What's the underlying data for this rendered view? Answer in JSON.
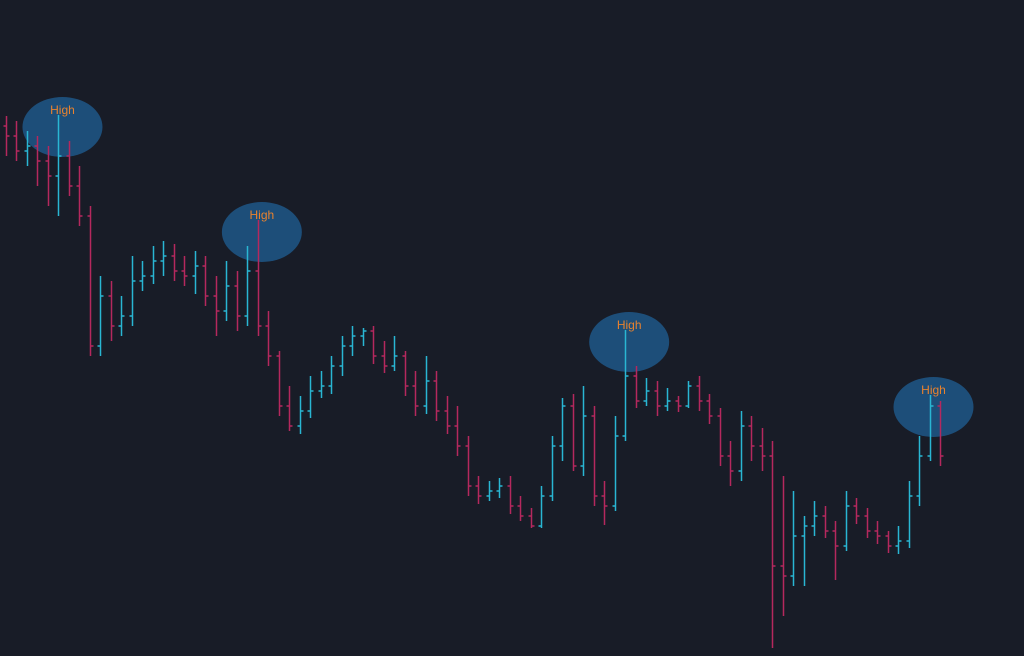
{
  "chart_data": {
    "type": "ohlc",
    "up_color": "#29b6d3",
    "down_color": "#b5285e",
    "note_color": "#1f5f95",
    "ylim": [
      0,
      656
    ],
    "open": [
      530,
      520,
      505,
      510,
      495,
      480,
      500,
      470,
      440,
      310,
      360,
      330,
      340,
      375,
      380,
      395,
      400,
      385,
      380,
      390,
      360,
      345,
      370,
      340,
      385,
      330,
      300,
      250,
      230,
      245,
      265,
      270,
      290,
      310,
      320,
      325,
      300,
      290,
      300,
      270,
      250,
      275,
      245,
      230,
      210,
      170,
      160,
      165,
      170,
      150,
      140,
      130,
      160,
      210,
      250,
      190,
      240,
      160,
      150,
      220,
      280,
      255,
      265,
      250,
      255,
      250,
      270,
      255,
      240,
      200,
      185,
      230,
      210,
      200,
      90,
      80,
      120,
      130,
      140,
      125,
      110,
      150,
      140,
      125,
      120,
      110,
      115,
      160,
      200,
      250
    ],
    "high": [
      540,
      535,
      525,
      520,
      510,
      541,
      515,
      490,
      450,
      380,
      375,
      360,
      400,
      395,
      410,
      415,
      412,
      400,
      405,
      400,
      380,
      395,
      385,
      410,
      436,
      345,
      305,
      270,
      260,
      280,
      285,
      300,
      320,
      330,
      328,
      330,
      315,
      320,
      305,
      285,
      300,
      285,
      260,
      250,
      220,
      180,
      175,
      178,
      180,
      160,
      148,
      170,
      220,
      258,
      262,
      270,
      250,
      175,
      240,
      326,
      290,
      278,
      275,
      268,
      260,
      275,
      280,
      262,
      248,
      215,
      245,
      240,
      228,
      215,
      180,
      165,
      140,
      155,
      150,
      135,
      165,
      158,
      148,
      135,
      125,
      130,
      175,
      220,
      261,
      255
    ],
    "low": [
      500,
      495,
      490,
      470,
      450,
      440,
      460,
      430,
      300,
      300,
      315,
      320,
      330,
      365,
      372,
      380,
      375,
      370,
      362,
      350,
      320,
      335,
      325,
      330,
      320,
      290,
      240,
      225,
      222,
      238,
      258,
      262,
      280,
      300,
      310,
      292,
      283,
      285,
      260,
      240,
      242,
      235,
      222,
      200,
      160,
      152,
      155,
      158,
      142,
      135,
      128,
      128,
      155,
      195,
      185,
      180,
      150,
      131,
      145,
      215,
      248,
      250,
      240,
      245,
      244,
      248,
      245,
      232,
      190,
      170,
      175,
      195,
      185,
      8,
      40,
      70,
      70,
      120,
      118,
      76,
      105,
      132,
      118,
      112,
      103,
      102,
      108,
      150,
      195,
      190
    ],
    "close": [
      520,
      505,
      510,
      495,
      480,
      500,
      470,
      440,
      310,
      360,
      330,
      340,
      375,
      380,
      395,
      400,
      385,
      380,
      390,
      360,
      345,
      370,
      340,
      385,
      330,
      300,
      250,
      230,
      245,
      265,
      270,
      290,
      310,
      320,
      325,
      300,
      290,
      300,
      270,
      250,
      275,
      245,
      230,
      210,
      170,
      160,
      165,
      170,
      150,
      140,
      130,
      160,
      210,
      250,
      190,
      240,
      160,
      150,
      220,
      280,
      255,
      265,
      250,
      255,
      250,
      270,
      255,
      240,
      200,
      185,
      230,
      210,
      200,
      90,
      80,
      120,
      130,
      140,
      125,
      110,
      150,
      140,
      125,
      120,
      110,
      115,
      160,
      200,
      250,
      200
    ],
    "annotations": [
      {
        "text": "High",
        "bar": 5
      },
      {
        "text": "High",
        "bar": 24
      },
      {
        "text": "High",
        "bar": 59
      },
      {
        "text": "High",
        "bar": 88
      }
    ]
  }
}
